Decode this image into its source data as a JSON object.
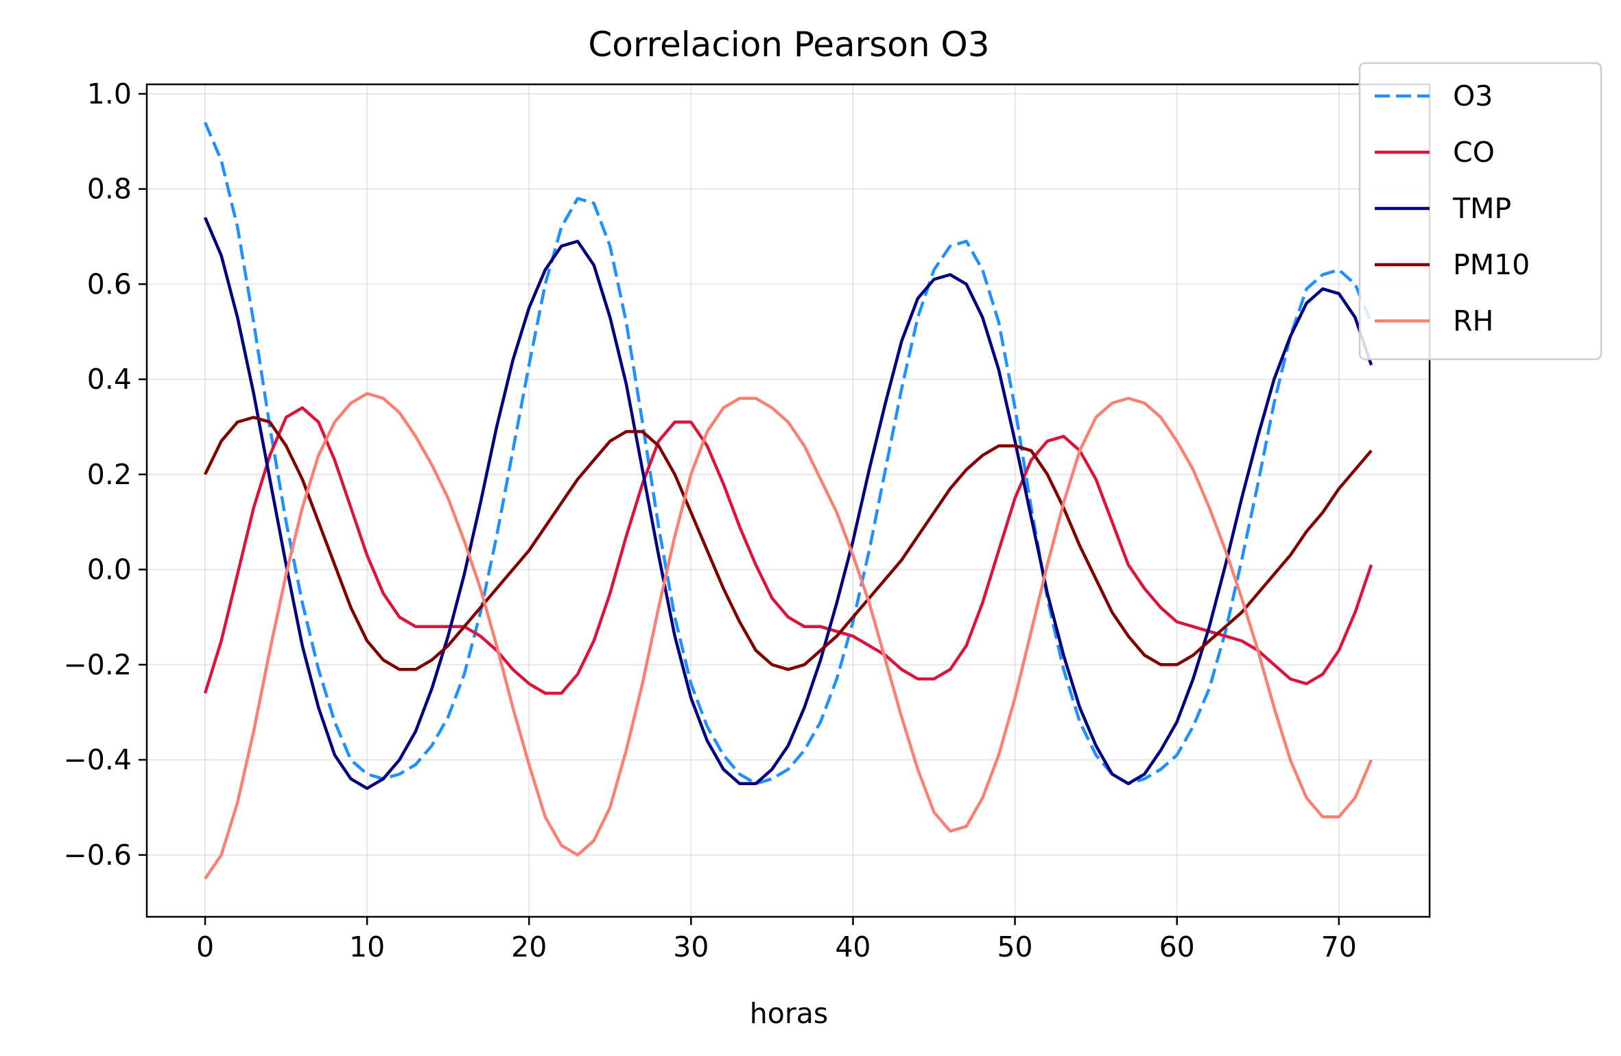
{
  "chart_data": {
    "type": "line",
    "title": "Correlacion Pearson O3",
    "xlabel": "horas",
    "ylabel": "",
    "xlim": [
      -3.6,
      75.6
    ],
    "ylim": [
      -0.73,
      1.02
    ],
    "xticks": [
      0,
      10,
      20,
      30,
      40,
      50,
      60,
      70
    ],
    "xtick_labels": [
      "0",
      "10",
      "20",
      "30",
      "40",
      "50",
      "60",
      "70"
    ],
    "yticks": [
      -0.6,
      -0.4,
      -0.2,
      0.0,
      0.2,
      0.4,
      0.6,
      0.8,
      1.0
    ],
    "ytick_labels": [
      "−0.6",
      "−0.4",
      "−0.2",
      "0.0",
      "0.2",
      "0.4",
      "0.6",
      "0.8",
      "1.0"
    ],
    "grid": true,
    "legend_position": "upper-right-outside",
    "x": [
      0,
      1,
      2,
      3,
      4,
      5,
      6,
      7,
      8,
      9,
      10,
      11,
      12,
      13,
      14,
      15,
      16,
      17,
      18,
      19,
      20,
      21,
      22,
      23,
      24,
      25,
      26,
      27,
      28,
      29,
      30,
      31,
      32,
      33,
      34,
      35,
      36,
      37,
      38,
      39,
      40,
      41,
      42,
      43,
      44,
      45,
      46,
      47,
      48,
      49,
      50,
      51,
      52,
      53,
      54,
      55,
      56,
      57,
      58,
      59,
      60,
      61,
      62,
      63,
      64,
      65,
      66,
      67,
      68,
      69,
      70,
      71,
      72
    ],
    "series": [
      {
        "name": "O3",
        "color": "#1e90ff",
        "style": "dashed",
        "values": [
          0.94,
          0.86,
          0.72,
          0.52,
          0.3,
          0.1,
          -0.07,
          -0.21,
          -0.32,
          -0.4,
          -0.43,
          -0.44,
          -0.43,
          -0.41,
          -0.37,
          -0.31,
          -0.22,
          -0.09,
          0.07,
          0.25,
          0.43,
          0.6,
          0.72,
          0.78,
          0.77,
          0.68,
          0.52,
          0.31,
          0.09,
          -0.1,
          -0.24,
          -0.33,
          -0.39,
          -0.43,
          -0.45,
          -0.44,
          -0.42,
          -0.38,
          -0.32,
          -0.23,
          -0.11,
          0.04,
          0.21,
          0.38,
          0.53,
          0.63,
          0.68,
          0.69,
          0.63,
          0.52,
          0.34,
          0.13,
          -0.06,
          -0.21,
          -0.32,
          -0.39,
          -0.43,
          -0.45,
          -0.44,
          -0.42,
          -0.39,
          -0.33,
          -0.25,
          -0.13,
          0.02,
          0.18,
          0.35,
          0.49,
          0.59,
          0.62,
          0.63,
          0.6,
          0.52
        ]
      },
      {
        "name": "CO",
        "color": "#dc143c",
        "style": "solid",
        "values": [
          -0.26,
          -0.15,
          -0.01,
          0.13,
          0.24,
          0.32,
          0.34,
          0.31,
          0.23,
          0.13,
          0.03,
          -0.05,
          -0.1,
          -0.12,
          -0.12,
          -0.12,
          -0.12,
          -0.14,
          -0.17,
          -0.21,
          -0.24,
          -0.26,
          -0.26,
          -0.22,
          -0.15,
          -0.05,
          0.07,
          0.18,
          0.27,
          0.31,
          0.31,
          0.26,
          0.18,
          0.09,
          0.01,
          -0.06,
          -0.1,
          -0.12,
          -0.12,
          -0.13,
          -0.14,
          -0.16,
          -0.18,
          -0.21,
          -0.23,
          -0.23,
          -0.21,
          -0.16,
          -0.07,
          0.04,
          0.15,
          0.23,
          0.27,
          0.28,
          0.25,
          0.19,
          0.1,
          0.01,
          -0.04,
          -0.08,
          -0.11,
          -0.12,
          -0.13,
          -0.14,
          -0.15,
          -0.17,
          -0.2,
          -0.23,
          -0.24,
          -0.22,
          -0.17,
          -0.09,
          0.01
        ]
      },
      {
        "name": "TMP",
        "color": "#000080",
        "style": "solid",
        "values": [
          0.74,
          0.66,
          0.53,
          0.37,
          0.19,
          0.01,
          -0.16,
          -0.29,
          -0.39,
          -0.44,
          -0.46,
          -0.44,
          -0.4,
          -0.34,
          -0.25,
          -0.14,
          -0.01,
          0.14,
          0.3,
          0.44,
          0.55,
          0.63,
          0.68,
          0.69,
          0.64,
          0.53,
          0.39,
          0.21,
          0.03,
          -0.14,
          -0.27,
          -0.36,
          -0.42,
          -0.45,
          -0.45,
          -0.42,
          -0.37,
          -0.29,
          -0.19,
          -0.07,
          0.06,
          0.21,
          0.35,
          0.48,
          0.57,
          0.61,
          0.62,
          0.6,
          0.53,
          0.42,
          0.27,
          0.11,
          -0.05,
          -0.18,
          -0.29,
          -0.37,
          -0.43,
          -0.45,
          -0.43,
          -0.38,
          -0.32,
          -0.23,
          -0.12,
          0.01,
          0.15,
          0.28,
          0.4,
          0.49,
          0.56,
          0.59,
          0.58,
          0.53,
          0.43
        ]
      },
      {
        "name": "PM10",
        "color": "#800000",
        "style": "solid",
        "values": [
          0.2,
          0.27,
          0.31,
          0.32,
          0.31,
          0.26,
          0.19,
          0.1,
          0.01,
          -0.08,
          -0.15,
          -0.19,
          -0.21,
          -0.21,
          -0.19,
          -0.16,
          -0.12,
          -0.08,
          -0.04,
          0.0,
          0.04,
          0.09,
          0.14,
          0.19,
          0.23,
          0.27,
          0.29,
          0.29,
          0.26,
          0.2,
          0.12,
          0.04,
          -0.04,
          -0.11,
          -0.17,
          -0.2,
          -0.21,
          -0.2,
          -0.17,
          -0.14,
          -0.1,
          -0.06,
          -0.02,
          0.02,
          0.07,
          0.12,
          0.17,
          0.21,
          0.24,
          0.26,
          0.26,
          0.25,
          0.2,
          0.13,
          0.05,
          -0.02,
          -0.09,
          -0.14,
          -0.18,
          -0.2,
          -0.2,
          -0.18,
          -0.15,
          -0.12,
          -0.09,
          -0.05,
          -0.01,
          0.03,
          0.08,
          0.12,
          0.17,
          0.21,
          0.25
        ]
      },
      {
        "name": "RH",
        "color": "#fa8072",
        "style": "solid",
        "values": [
          -0.65,
          -0.6,
          -0.49,
          -0.34,
          -0.17,
          -0.01,
          0.13,
          0.24,
          0.31,
          0.35,
          0.37,
          0.36,
          0.33,
          0.28,
          0.22,
          0.15,
          0.06,
          -0.04,
          -0.16,
          -0.29,
          -0.41,
          -0.52,
          -0.58,
          -0.6,
          -0.57,
          -0.5,
          -0.38,
          -0.24,
          -0.08,
          0.07,
          0.2,
          0.29,
          0.34,
          0.36,
          0.36,
          0.34,
          0.31,
          0.26,
          0.19,
          0.12,
          0.03,
          -0.07,
          -0.19,
          -0.31,
          -0.42,
          -0.51,
          -0.55,
          -0.54,
          -0.48,
          -0.39,
          -0.27,
          -0.13,
          0.01,
          0.14,
          0.25,
          0.32,
          0.35,
          0.36,
          0.35,
          0.32,
          0.27,
          0.21,
          0.13,
          0.04,
          -0.06,
          -0.17,
          -0.29,
          -0.4,
          -0.48,
          -0.52,
          -0.52,
          -0.48,
          -0.4
        ]
      }
    ]
  }
}
